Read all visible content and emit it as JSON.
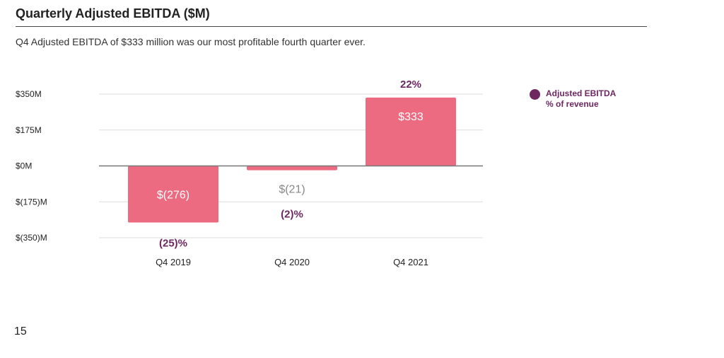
{
  "page": {
    "title": "Quarterly Adjusted EBITDA ($M)",
    "subtitle": "Q4 Adjusted EBITDA of $333 million was our most profitable fourth quarter ever.",
    "page_number": "15"
  },
  "legend": {
    "line1": "Adjusted EBITDA",
    "line2": "% of revenue",
    "color": "#6D2862"
  },
  "colors": {
    "bar": "#EC6B80",
    "percent_text": "#6D2862",
    "negative_small_label": "#888888",
    "axis_text": "#222222",
    "gridline": "#DDDDDD",
    "zero_line": "#777777"
  },
  "chart_data": {
    "type": "bar",
    "title": "Quarterly Adjusted EBITDA ($M)",
    "categories": [
      "Q4 2019",
      "Q4 2020",
      "Q4 2021"
    ],
    "values": [
      -276,
      -21,
      333
    ],
    "value_labels": [
      "$(276)",
      "$(21)",
      "$333"
    ],
    "percent_of_revenue": [
      "(25)%",
      "(2)%",
      "22%"
    ],
    "ylim": [
      -350,
      350
    ],
    "yticks": [
      350,
      175,
      0,
      -175,
      -350
    ],
    "ytick_labels": [
      "$350M",
      "$175M",
      "$0M",
      "$(175)M",
      "$(350)M"
    ],
    "grid": true,
    "legend_position": "right"
  }
}
